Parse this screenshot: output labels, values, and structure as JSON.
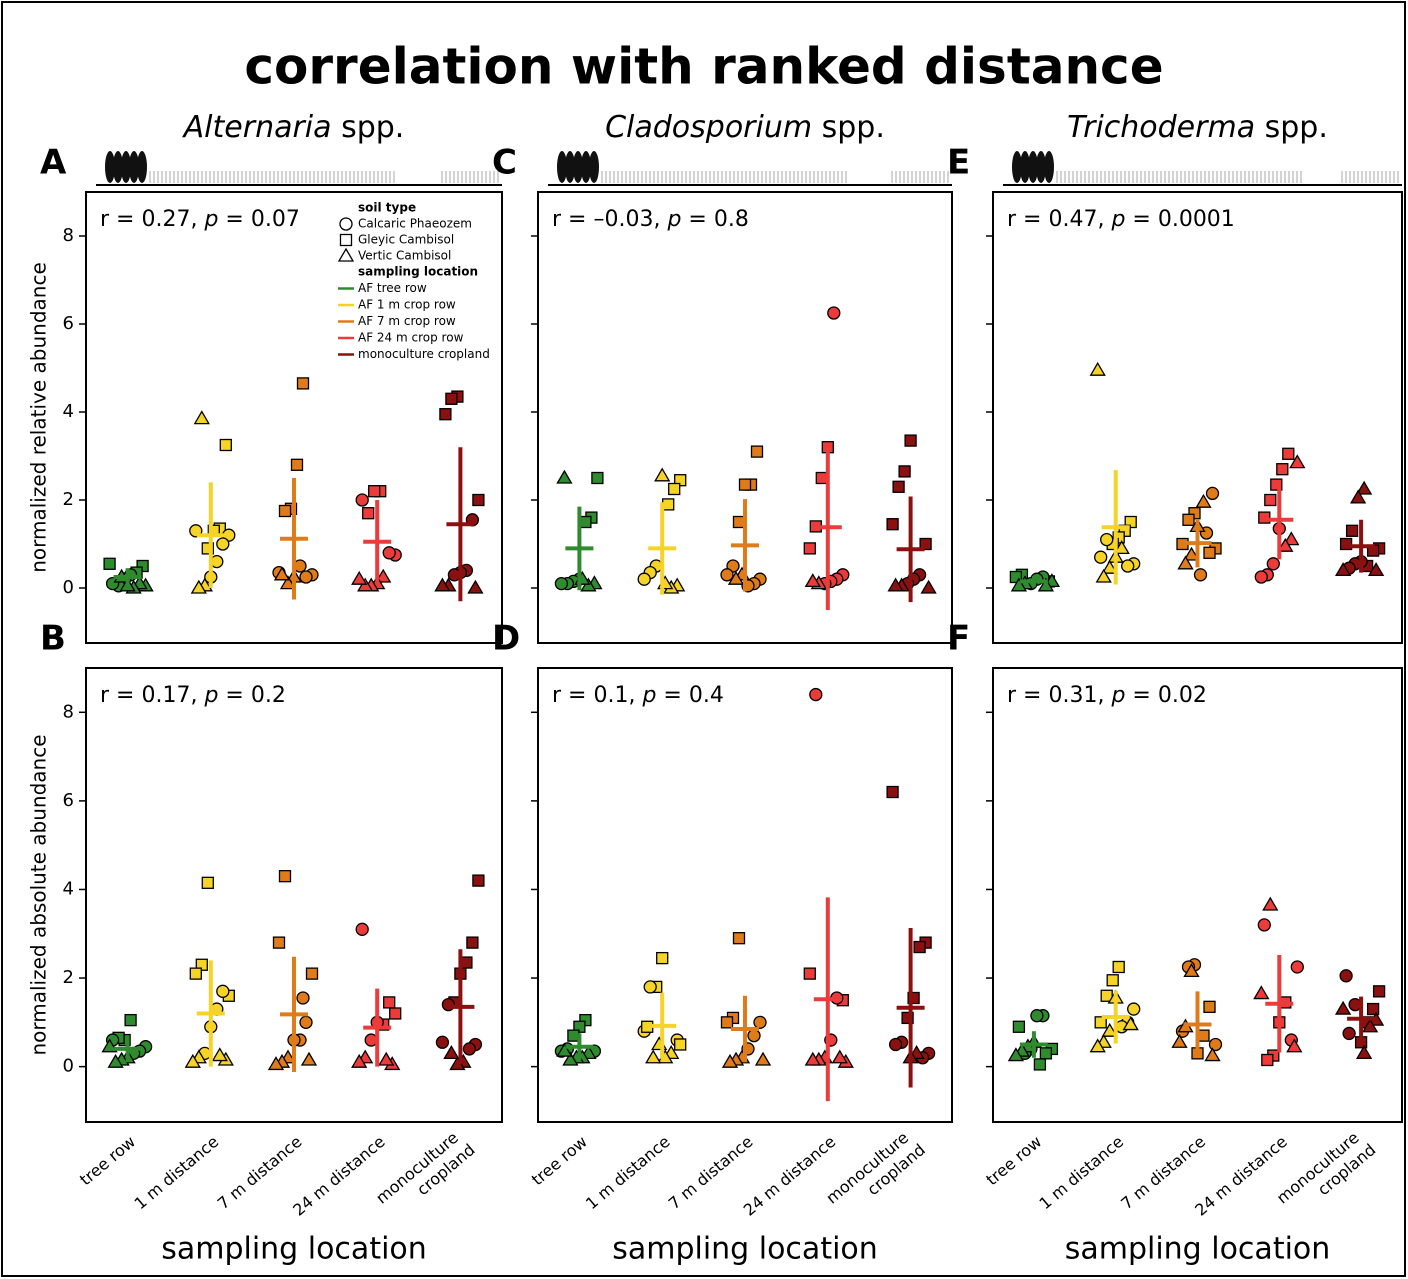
{
  "title": "correlation with ranked distance",
  "chart_data": [
    {
      "type": "strip",
      "panel_label": "A",
      "header": [
        "Alternaria",
        " spp."
      ],
      "annotation": [
        "r = 0.27, ",
        "p",
        " = 0.07"
      ],
      "ylabel": "normalized relative abundance",
      "ylim": [
        -1.25,
        9
      ],
      "yticks": [
        0,
        2,
        4,
        6,
        8
      ],
      "soil_legend": {
        "title": "soil type",
        "names": [
          "Calcaric Phaeozem",
          "Gleyic Cambisol",
          "Vertic Cambisol"
        ]
      },
      "location_legend_title": "sampling location",
      "series": [
        {
          "name": "AF tree row",
          "color": "#2e8b2e",
          "values": [
            0.55,
            0.5,
            0.35,
            0.3,
            0.2,
            0.05,
            0.1,
            0.05,
            0.1,
            0.0,
            0.05,
            0.25
          ],
          "soil": [
            1,
            1,
            1,
            0,
            0,
            0,
            0,
            2,
            2,
            2,
            2,
            2
          ],
          "mean": 0.25,
          "sd": 0.2
        },
        {
          "name": "AF 1 m crop row",
          "color": "#f5d327",
          "values": [
            3.25,
            1.35,
            1.3,
            0.9,
            3.85,
            1.3,
            1.2,
            1.0,
            0.6,
            0.25,
            0.05,
            0.0
          ],
          "soil": [
            1,
            1,
            1,
            1,
            2,
            0,
            0,
            0,
            0,
            0,
            2,
            2
          ],
          "mean": 1.2,
          "sd": 1.2
        },
        {
          "name": "AF 7 m crop row",
          "color": "#e07b1a",
          "values": [
            4.65,
            2.8,
            1.8,
            1.75,
            0.35,
            0.3,
            0.25,
            0.5,
            0.25,
            0.1,
            0.3
          ],
          "soil": [
            1,
            1,
            1,
            1,
            0,
            0,
            0,
            0,
            2,
            2,
            2
          ],
          "mean": 1.12,
          "sd": 1.38
        },
        {
          "name": "AF 24 m crop row",
          "color": "#ec3b3b",
          "values": [
            2.2,
            2.2,
            1.7,
            2.0,
            0.75,
            0.8,
            0.25,
            0.1,
            0.05,
            0.05,
            0.2
          ],
          "soil": [
            1,
            1,
            1,
            0,
            0,
            0,
            2,
            2,
            2,
            2,
            2
          ],
          "mean": 1.05,
          "sd": 0.95
        },
        {
          "name": "monoculture cropland",
          "color": "#8b1010",
          "values": [
            4.35,
            4.3,
            3.95,
            2.0,
            1.55,
            0.4,
            0.35,
            0.3,
            0.05,
            0.05,
            0.0
          ],
          "soil": [
            1,
            1,
            1,
            1,
            0,
            0,
            0,
            0,
            2,
            2,
            2
          ],
          "mean": 1.45,
          "sd": 1.75
        }
      ]
    },
    {
      "type": "strip",
      "panel_label": "B",
      "annotation": [
        "r = 0.17, ",
        "p",
        " = 0.2"
      ],
      "ylabel": "normalized absolute abundance",
      "xlabel": "sampling location",
      "ylim": [
        -1.25,
        9
      ],
      "yticks": [
        0,
        2,
        4,
        6,
        8
      ],
      "categories": [
        "tree row",
        "1 m distance",
        "7 m distance",
        "24 m distance",
        "monoculture cropland"
      ],
      "series": [
        {
          "values": [
            1.05,
            0.6,
            0.65,
            0.6,
            0.45,
            0.35,
            0.3,
            0.2,
            0.15,
            0.1,
            0.45
          ],
          "soil": [
            1,
            1,
            1,
            0,
            0,
            0,
            0,
            2,
            2,
            2,
            2
          ],
          "mean": 0.4,
          "sd": 0.3
        },
        {
          "values": [
            4.15,
            2.3,
            2.1,
            1.6,
            1.7,
            1.3,
            0.9,
            0.3,
            0.2,
            0.1,
            0.15,
            0.25
          ],
          "soil": [
            1,
            1,
            1,
            1,
            0,
            0,
            0,
            0,
            2,
            2,
            2,
            2
          ],
          "mean": 1.2,
          "sd": 1.2
        },
        {
          "values": [
            4.3,
            2.8,
            2.1,
            1.0,
            0.6,
            0.6,
            0.2,
            0.1,
            0.05,
            0.15,
            1.55
          ],
          "soil": [
            1,
            1,
            1,
            0,
            0,
            0,
            2,
            2,
            2,
            2,
            0
          ],
          "mean": 1.18,
          "sd": 1.3
        },
        {
          "values": [
            3.1,
            1.2,
            1.45,
            0.95,
            1.0,
            0.6,
            0.2,
            0.1,
            0.05,
            0.15
          ],
          "soil": [
            0,
            1,
            1,
            1,
            0,
            0,
            2,
            2,
            2,
            2
          ],
          "mean": 0.88,
          "sd": 0.88
        },
        {
          "values": [
            4.2,
            2.8,
            2.35,
            2.1,
            1.45,
            1.4,
            0.55,
            0.5,
            0.4,
            0.1,
            0.05,
            0.3
          ],
          "soil": [
            1,
            1,
            1,
            1,
            1,
            0,
            0,
            0,
            0,
            2,
            2,
            2
          ],
          "mean": 1.35,
          "sd": 1.3
        }
      ]
    },
    {
      "type": "strip",
      "panel_label": "C",
      "header": [
        "Cladosporium",
        " spp."
      ],
      "annotation": [
        "r = –0.03, ",
        "p",
        " = 0.8"
      ],
      "ylim": [
        -1.25,
        9
      ],
      "yticks": [
        0,
        2,
        4,
        6,
        8
      ],
      "series": [
        {
          "values": [
            2.5,
            2.5,
            1.6,
            1.5,
            0.2,
            0.15,
            0.1,
            0.1,
            0.1,
            0.05,
            0.2
          ],
          "soil": [
            2,
            1,
            1,
            1,
            0,
            0,
            0,
            0,
            2,
            2,
            2
          ],
          "mean": 0.9,
          "sd": 0.95
        },
        {
          "values": [
            2.45,
            2.25,
            1.9,
            2.55,
            0.5,
            0.35,
            0.2,
            0.05,
            0.0,
            0.1
          ],
          "soil": [
            1,
            1,
            1,
            2,
            0,
            0,
            0,
            2,
            2,
            2
          ],
          "mean": 0.9,
          "sd": 1.05
        },
        {
          "values": [
            3.1,
            2.35,
            2.35,
            1.5,
            0.5,
            0.3,
            0.2,
            0.1,
            0.05,
            0.3,
            0.2
          ],
          "soil": [
            1,
            1,
            1,
            1,
            0,
            0,
            0,
            0,
            0,
            2,
            2
          ],
          "mean": 0.97,
          "sd": 1.05
        },
        {
          "values": [
            6.25,
            3.2,
            2.5,
            1.4,
            0.9,
            0.3,
            0.2,
            0.15,
            0.1,
            0.1,
            0.15
          ],
          "soil": [
            0,
            1,
            1,
            1,
            1,
            0,
            0,
            0,
            0,
            2,
            2
          ],
          "mean": 1.38,
          "sd": 1.88
        },
        {
          "values": [
            3.35,
            2.65,
            2.3,
            1.45,
            1.0,
            0.3,
            0.2,
            0.1,
            0.05,
            0.05,
            0.0
          ],
          "soil": [
            1,
            1,
            1,
            1,
            1,
            0,
            0,
            0,
            2,
            2,
            2
          ],
          "mean": 0.88,
          "sd": 1.2
        }
      ]
    },
    {
      "type": "strip",
      "panel_label": "D",
      "annotation": [
        "r = 0.1, ",
        "p",
        " = 0.4"
      ],
      "xlabel": "sampling location",
      "ylim": [
        -1.25,
        9
      ],
      "yticks": [
        0,
        2,
        4,
        6,
        8
      ],
      "categories": [
        "tree row",
        "1 m distance",
        "7 m distance",
        "24 m distance",
        "monoculture cropland"
      ],
      "series": [
        {
          "values": [
            1.05,
            0.9,
            0.7,
            0.4,
            0.35,
            0.35,
            0.3,
            0.2,
            0.2,
            0.15,
            0.35
          ],
          "soil": [
            1,
            1,
            1,
            0,
            0,
            0,
            2,
            2,
            2,
            2,
            2
          ],
          "mean": 0.45,
          "sd": 0.3
        },
        {
          "values": [
            2.45,
            1.8,
            1.8,
            0.8,
            0.6,
            0.3,
            0.2,
            0.5,
            0.2,
            0.9,
            0.5
          ],
          "soil": [
            1,
            1,
            0,
            0,
            0,
            2,
            2,
            2,
            2,
            1,
            1
          ],
          "mean": 0.92,
          "sd": 0.75
        },
        {
          "values": [
            2.9,
            1.1,
            1.0,
            1.0,
            0.7,
            0.4,
            0.2,
            0.15,
            0.1,
            0.15
          ],
          "soil": [
            1,
            1,
            1,
            0,
            0,
            0,
            2,
            2,
            2,
            2
          ],
          "mean": 0.85,
          "sd": 0.75
        },
        {
          "values": [
            8.4,
            2.1,
            1.5,
            1.55,
            0.6,
            0.2,
            0.15,
            0.15,
            0.1,
            0.2
          ],
          "soil": [
            0,
            1,
            1,
            0,
            0,
            2,
            2,
            2,
            2,
            2
          ],
          "mean": 1.52,
          "sd": 2.3
        },
        {
          "values": [
            6.2,
            2.8,
            2.7,
            1.55,
            1.1,
            0.55,
            0.5,
            0.3,
            0.2,
            0.3,
            0.2
          ],
          "soil": [
            1,
            1,
            1,
            1,
            1,
            0,
            0,
            0,
            0,
            2,
            2
          ],
          "mean": 1.33,
          "sd": 1.8
        }
      ]
    },
    {
      "type": "strip",
      "panel_label": "E",
      "header": [
        "Trichoderma",
        " spp."
      ],
      "annotation": [
        "r = 0.47, ",
        "p",
        " = 0.0001"
      ],
      "ylim": [
        -1.25,
        9
      ],
      "yticks": [
        0,
        2,
        4,
        6,
        8
      ],
      "series": [
        {
          "values": [
            0.3,
            0.25,
            0.15,
            0.25,
            0.2,
            0.1,
            0.1,
            0.05,
            0.15,
            0.05
          ],
          "soil": [
            1,
            1,
            1,
            0,
            0,
            0,
            2,
            2,
            2,
            2
          ],
          "mean": 0.15,
          "sd": 0.12
        },
        {
          "values": [
            4.95,
            1.5,
            1.3,
            1.15,
            1.0,
            1.1,
            0.7,
            0.55,
            0.5,
            0.9,
            0.7,
            0.45,
            0.25
          ],
          "soil": [
            2,
            1,
            1,
            1,
            1,
            0,
            0,
            0,
            0,
            2,
            2,
            2,
            2
          ],
          "mean": 1.38,
          "sd": 1.3
        },
        {
          "values": [
            2.15,
            1.25,
            0.3,
            1.7,
            1.55,
            1.0,
            0.9,
            0.8,
            1.95,
            1.4,
            0.75,
            0.55
          ],
          "soil": [
            0,
            0,
            0,
            1,
            1,
            1,
            1,
            1,
            2,
            2,
            2,
            2
          ],
          "mean": 1.02,
          "sd": 0.55
        },
        {
          "values": [
            3.05,
            2.7,
            2.35,
            2.0,
            1.6,
            2.85,
            1.1,
            0.95,
            1.35,
            0.55,
            0.3,
            0.25
          ],
          "soil": [
            1,
            1,
            1,
            1,
            1,
            2,
            2,
            2,
            0,
            0,
            0,
            0
          ],
          "mean": 1.55,
          "sd": 0.9
        },
        {
          "values": [
            2.25,
            2.05,
            1.3,
            1.0,
            0.9,
            0.85,
            0.5,
            0.6,
            0.55,
            0.45,
            0.4,
            0.4
          ],
          "soil": [
            2,
            2,
            1,
            1,
            1,
            1,
            1,
            0,
            0,
            0,
            2,
            2
          ],
          "mean": 0.95,
          "sd": 0.6
        }
      ]
    },
    {
      "type": "strip",
      "panel_label": "F",
      "annotation": [
        "r = 0.31, ",
        "p",
        " = 0.02"
      ],
      "xlabel": "sampling location",
      "ylim": [
        -1.25,
        9
      ],
      "yticks": [
        0,
        2,
        4,
        6,
        8
      ],
      "categories": [
        "tree row",
        "1 m distance",
        "7 m distance",
        "24 m distance",
        "monoculture cropland"
      ],
      "series": [
        {
          "values": [
            1.15,
            1.15,
            0.4,
            0.3,
            0.9,
            0.4,
            0.3,
            0.05,
            0.55,
            0.45,
            0.35,
            0.25
          ],
          "soil": [
            0,
            0,
            0,
            0,
            1,
            1,
            1,
            1,
            2,
            2,
            2,
            2
          ],
          "mean": 0.5,
          "sd": 0.3
        },
        {
          "values": [
            2.25,
            1.95,
            1.6,
            1.0,
            1.3,
            1.0,
            0.9,
            1.55,
            0.8,
            0.55,
            0.45,
            0.95
          ],
          "soil": [
            1,
            1,
            1,
            1,
            0,
            0,
            0,
            2,
            2,
            2,
            2,
            2
          ],
          "mean": 1.12,
          "sd": 0.6
        },
        {
          "values": [
            2.3,
            2.25,
            0.8,
            0.5,
            1.35,
            0.7,
            0.3,
            2.15,
            0.9,
            0.55,
            0.25
          ],
          "soil": [
            0,
            0,
            0,
            0,
            1,
            1,
            1,
            2,
            2,
            2,
            2
          ],
          "mean": 0.95,
          "sd": 0.75
        },
        {
          "values": [
            3.65,
            3.2,
            2.25,
            0.6,
            1.45,
            1.0,
            0.25,
            0.15,
            1.65,
            0.45
          ],
          "soil": [
            2,
            0,
            0,
            0,
            1,
            1,
            1,
            1,
            2,
            2
          ],
          "mean": 1.42,
          "sd": 1.1
        },
        {
          "values": [
            2.05,
            1.7,
            1.3,
            1.0,
            0.55,
            1.4,
            0.75,
            1.3,
            1.05,
            0.9,
            0.3
          ],
          "soil": [
            0,
            1,
            1,
            1,
            1,
            0,
            0,
            2,
            2,
            2,
            2
          ],
          "mean": 1.08,
          "sd": 0.5
        }
      ]
    }
  ]
}
